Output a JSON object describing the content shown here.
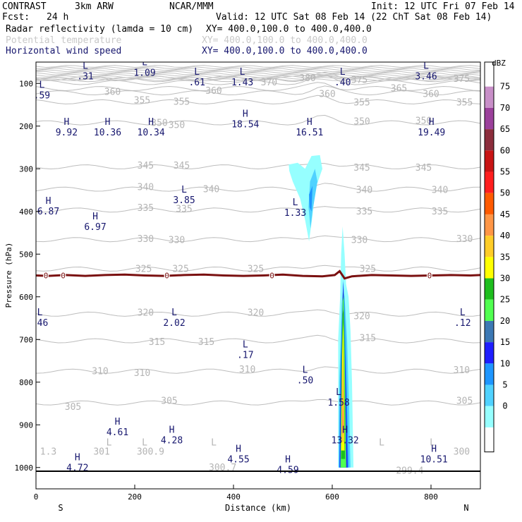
{
  "header": {
    "program": "CONTRAST",
    "model": "3km ARW",
    "org": "NCAR/MMM",
    "init": "Init: 12 UTC Fri 07 Feb 14",
    "fcst_label": "Fcst:",
    "fcst_value": "24 h",
    "valid": "Valid: 12 UTC Sat 08 Feb 14 (22 ChT Sat 08 Feb 14)",
    "fields": [
      {
        "name": "Radar reflectivity (lamda = 10 cm)",
        "xy": "XY= 400.0,100.0 to 400.0,400.0",
        "color": "#000000"
      },
      {
        "name": "Potential temperature",
        "xy": "XY= 400.0,100.0 to 400.0,400.0",
        "color": "#c8c8c8"
      },
      {
        "name": "Horizontal wind speed",
        "xy": "XY= 400.0,100.0 to 400.0,400.0",
        "color": "#16166e"
      }
    ]
  },
  "chart_data": {
    "type": "contour cross-section",
    "xlabel": "Distance (km)",
    "ylabel": "Pressure (hPa)",
    "xlim": [
      0,
      900
    ],
    "ylim": [
      1050,
      50
    ],
    "x_ticks": [
      "0",
      "200",
      "400",
      "600",
      "800"
    ],
    "x_tick_values": [
      0,
      200,
      400,
      600,
      800
    ],
    "y_ticks": [
      "100",
      "200",
      "300",
      "400",
      "500",
      "600",
      "700",
      "800",
      "900",
      "1000"
    ],
    "y_tick_values": [
      100,
      200,
      300,
      400,
      500,
      600,
      700,
      800,
      900,
      1000
    ],
    "endpoint_left": "S",
    "endpoint_right": "N",
    "colorbar": {
      "unit": "dBZ",
      "labels": [
        "75",
        "70",
        "65",
        "60",
        "55",
        "50",
        "45",
        "40",
        "35",
        "30",
        "25",
        "20",
        "15",
        "10",
        "5",
        "0"
      ],
      "colors": [
        "#ffffff",
        "#c88fc8",
        "#9b409b",
        "#8c2d3c",
        "#c81414",
        "#ff1e1e",
        "#ff5a00",
        "#ff9646",
        "#ffcd28",
        "#ffff00",
        "#1ebe1e",
        "#50ff50",
        "#3c78b4",
        "#1e1eff",
        "#1e96ff",
        "#50d2ff",
        "#96ffff",
        "#ffffff"
      ]
    },
    "theta_labels": [
      {
        "text": "380",
        "x": 550,
        "p": 88
      },
      {
        "text": "375",
        "x": 655,
        "p": 92
      },
      {
        "text": "375",
        "x": 862,
        "p": 90
      },
      {
        "text": "370",
        "x": 472,
        "p": 98
      },
      {
        "text": "365",
        "x": 735,
        "p": 112
      },
      {
        "text": "360",
        "x": 155,
        "p": 120
      },
      {
        "text": "360",
        "x": 360,
        "p": 118
      },
      {
        "text": "360",
        "x": 590,
        "p": 125
      },
      {
        "text": "360",
        "x": 800,
        "p": 125
      },
      {
        "text": "355",
        "x": 215,
        "p": 140
      },
      {
        "text": "355",
        "x": 295,
        "p": 143
      },
      {
        "text": "355",
        "x": 660,
        "p": 145
      },
      {
        "text": "355",
        "x": 868,
        "p": 145
      },
      {
        "text": "350",
        "x": 250,
        "p": 193
      },
      {
        "text": "350",
        "x": 285,
        "p": 198
      },
      {
        "text": "350",
        "x": 660,
        "p": 190
      },
      {
        "text": "350",
        "x": 785,
        "p": 188
      },
      {
        "text": "345",
        "x": 222,
        "p": 293
      },
      {
        "text": "345",
        "x": 295,
        "p": 293
      },
      {
        "text": "345",
        "x": 660,
        "p": 298
      },
      {
        "text": "345",
        "x": 785,
        "p": 298
      },
      {
        "text": "340",
        "x": 222,
        "p": 343
      },
      {
        "text": "340",
        "x": 355,
        "p": 348
      },
      {
        "text": "340",
        "x": 665,
        "p": 350
      },
      {
        "text": "340",
        "x": 818,
        "p": 350
      },
      {
        "text": "335",
        "x": 222,
        "p": 392
      },
      {
        "text": "335",
        "x": 300,
        "p": 395
      },
      {
        "text": "335",
        "x": 665,
        "p": 400
      },
      {
        "text": "335",
        "x": 818,
        "p": 400
      },
      {
        "text": "330",
        "x": 222,
        "p": 465
      },
      {
        "text": "330",
        "x": 285,
        "p": 467
      },
      {
        "text": "330",
        "x": 655,
        "p": 467
      },
      {
        "text": "330",
        "x": 868,
        "p": 465
      },
      {
        "text": "325",
        "x": 218,
        "p": 535
      },
      {
        "text": "325",
        "x": 293,
        "p": 535
      },
      {
        "text": "325",
        "x": 445,
        "p": 535
      },
      {
        "text": "325",
        "x": 672,
        "p": 535
      },
      {
        "text": "320",
        "x": 222,
        "p": 638
      },
      {
        "text": "320",
        "x": 445,
        "p": 638
      },
      {
        "text": "320",
        "x": 660,
        "p": 646
      },
      {
        "text": "315",
        "x": 245,
        "p": 706
      },
      {
        "text": "315",
        "x": 345,
        "p": 706
      },
      {
        "text": "315",
        "x": 672,
        "p": 697
      },
      {
        "text": "310",
        "x": 130,
        "p": 775
      },
      {
        "text": "310",
        "x": 215,
        "p": 779
      },
      {
        "text": "310",
        "x": 428,
        "p": 771
      },
      {
        "text": "310",
        "x": 862,
        "p": 772
      },
      {
        "text": "305",
        "x": 75,
        "p": 858
      },
      {
        "text": "305",
        "x": 270,
        "p": 844
      },
      {
        "text": "305",
        "x": 868,
        "p": 844
      },
      {
        "text": "1.3",
        "x": 25,
        "p": 963
      },
      {
        "text": "301",
        "x": 133,
        "p": 963
      },
      {
        "text": "300.9",
        "x": 232,
        "p": 963
      },
      {
        "text": "300.7",
        "x": 378,
        "p": 1000
      },
      {
        "text": "299.4",
        "x": 757,
        "p": 1008
      },
      {
        "text": "300",
        "x": 862,
        "p": 963
      }
    ],
    "theta_markers": [
      {
        "text": "L",
        "x": 148,
        "p": 942
      },
      {
        "text": "L",
        "x": 220,
        "p": 942
      },
      {
        "text": "L",
        "x": 360,
        "p": 942
      },
      {
        "text": "L",
        "x": 700,
        "p": 942
      },
      {
        "text": "L",
        "x": 803,
        "p": 942
      }
    ],
    "wind_extrema": [
      {
        "type": "L",
        "value": ".31",
        "x": 100,
        "p": 72
      },
      {
        "type": "L",
        "value": "1.09",
        "x": 220,
        "p": 64
      },
      {
        "type": "L",
        "value": ".61",
        "x": 326,
        "p": 86
      },
      {
        "type": "L",
        "value": "1.43",
        "x": 418,
        "p": 86
      },
      {
        "type": "L",
        "value": ".40",
        "x": 621,
        "p": 86
      },
      {
        "type": "L",
        "value": "3.46",
        "x": 790,
        "p": 72
      },
      {
        "type": "L",
        "value": ".59",
        "x": 12,
        "p": 117
      },
      {
        "type": "H",
        "value": "9.92",
        "x": 62,
        "p": 204
      },
      {
        "type": "H",
        "value": "10.36",
        "x": 145,
        "p": 204
      },
      {
        "type": "H",
        "value": "10.34",
        "x": 233,
        "p": 204
      },
      {
        "type": "H",
        "value": "18.54",
        "x": 424,
        "p": 185
      },
      {
        "type": "H",
        "value": "16.51",
        "x": 554,
        "p": 204
      },
      {
        "type": "H",
        "value": "19.49",
        "x": 801,
        "p": 204
      },
      {
        "type": "L",
        "value": "3.85",
        "x": 300,
        "p": 362
      },
      {
        "type": "L",
        "value": "1.33",
        "x": 525,
        "p": 392
      },
      {
        "type": "H",
        "value": "6.87",
        "x": 25,
        "p": 389
      },
      {
        "type": "H",
        "value": "6.97",
        "x": 120,
        "p": 425
      },
      {
        "type": "L",
        "value": ".46",
        "x": 8,
        "p": 650
      },
      {
        "type": "L",
        "value": "2.02",
        "x": 280,
        "p": 650
      },
      {
        "type": "L",
        "value": ".12",
        "x": 864,
        "p": 650
      },
      {
        "type": "L",
        "value": ".17",
        "x": 424,
        "p": 725
      },
      {
        "type": "L",
        "value": ".50",
        "x": 545,
        "p": 785
      },
      {
        "type": "L",
        "value": "1.58",
        "x": 613,
        "p": 837
      },
      {
        "type": "H",
        "value": "4.61",
        "x": 165,
        "p": 906
      },
      {
        "type": "H",
        "value": "4.28",
        "x": 275,
        "p": 925
      },
      {
        "type": "H",
        "value": "13.32",
        "x": 626,
        "p": 925
      },
      {
        "type": "H",
        "value": "10.51",
        "x": 806,
        "p": 970
      },
      {
        "type": "H",
        "value": "4.55",
        "x": 410,
        "p": 970
      },
      {
        "type": "H",
        "value": "4.72",
        "x": 84,
        "p": 990
      },
      {
        "type": "H",
        "value": "4.59",
        "x": 510,
        "p": 995
      }
    ],
    "freezing_level": {
      "value": "0",
      "color": "#7a1010",
      "points": [
        [
          0,
          550
        ],
        [
          25,
          551
        ],
        [
          60,
          549
        ],
        [
          100,
          551
        ],
        [
          140,
          549
        ],
        [
          180,
          548
        ],
        [
          220,
          550
        ],
        [
          260,
          551
        ],
        [
          300,
          549
        ],
        [
          340,
          548
        ],
        [
          380,
          550
        ],
        [
          420,
          551
        ],
        [
          460,
          550
        ],
        [
          500,
          548
        ],
        [
          540,
          551
        ],
        [
          580,
          552
        ],
        [
          605,
          549
        ],
        [
          615,
          540
        ],
        [
          625,
          557
        ],
        [
          640,
          552
        ],
        [
          680,
          549
        ],
        [
          720,
          550
        ],
        [
          760,
          551
        ],
        [
          800,
          550
        ],
        [
          840,
          549
        ],
        [
          880,
          550
        ],
        [
          900,
          549
        ]
      ],
      "label_x": [
        20,
        55,
        265,
        478,
        797
      ]
    },
    "reflectivity": [
      {
        "dbz": 5,
        "points": [
          [
            512,
            290
          ],
          [
            530,
            286
          ],
          [
            545,
            300
          ],
          [
            558,
            270
          ],
          [
            575,
            268
          ],
          [
            580,
            300
          ],
          [
            565,
            350
          ],
          [
            560,
            410
          ],
          [
            553,
            470
          ],
          [
            545,
            420
          ],
          [
            535,
            370
          ],
          [
            520,
            330
          ],
          [
            513,
            305
          ]
        ]
      },
      {
        "dbz": 10,
        "points": [
          [
            555,
            330
          ],
          [
            565,
            300
          ],
          [
            570,
            330
          ],
          [
            560,
            400
          ],
          [
            556,
            440
          ],
          [
            552,
            390
          ]
        ]
      },
      {
        "dbz": 15,
        "points": [
          [
            553,
            360
          ],
          [
            560,
            340
          ],
          [
            558,
            400
          ],
          [
            554,
            390
          ]
        ]
      },
      {
        "dbz": 5,
        "points": [
          [
            612,
            1000
          ],
          [
            612,
            700
          ],
          [
            616,
            600
          ],
          [
            618,
            500
          ],
          [
            621,
            435
          ],
          [
            625,
            500
          ],
          [
            628,
            570
          ],
          [
            633,
            600
          ],
          [
            637,
            680
          ],
          [
            640,
            800
          ],
          [
            643,
            1000
          ]
        ]
      },
      {
        "dbz": 10,
        "points": [
          [
            613,
            1000
          ],
          [
            614,
            800
          ],
          [
            617,
            700
          ],
          [
            619,
            620
          ],
          [
            622,
            580
          ],
          [
            625,
            600
          ],
          [
            630,
            700
          ],
          [
            634,
            850
          ],
          [
            637,
            1000
          ]
        ]
      },
      {
        "dbz": 15,
        "points": [
          [
            614,
            1000
          ],
          [
            616,
            800
          ],
          [
            619,
            680
          ],
          [
            622,
            560
          ],
          [
            625,
            620
          ],
          [
            628,
            750
          ],
          [
            633,
            1000
          ]
        ]
      },
      {
        "dbz": 20,
        "points": [
          [
            615,
            1000
          ],
          [
            617,
            820
          ],
          [
            620,
            650
          ],
          [
            622,
            565
          ],
          [
            624,
            640
          ],
          [
            627,
            780
          ],
          [
            631,
            1000
          ]
        ]
      },
      {
        "dbz": 25,
        "points": [
          [
            616,
            1000
          ],
          [
            618,
            800
          ],
          [
            620,
            650
          ],
          [
            623,
            580
          ],
          [
            625,
            680
          ],
          [
            629,
            1000
          ]
        ]
      },
      {
        "dbz": 30,
        "points": [
          [
            617,
            1000
          ],
          [
            619,
            760
          ],
          [
            621,
            610
          ],
          [
            623,
            600
          ],
          [
            625,
            720
          ],
          [
            628,
            1000
          ]
        ]
      },
      {
        "dbz": 35,
        "points": [
          [
            618,
            980
          ],
          [
            619,
            760
          ],
          [
            621,
            640
          ],
          [
            623,
            630
          ],
          [
            624,
            760
          ],
          [
            626,
            980
          ]
        ]
      },
      {
        "dbz": 40,
        "points": [
          [
            618,
            960
          ],
          [
            620,
            740
          ],
          [
            622,
            660
          ],
          [
            623,
            700
          ],
          [
            625,
            960
          ]
        ]
      },
      {
        "dbz": 45,
        "points": [
          [
            619,
            940
          ],
          [
            620,
            800
          ],
          [
            622,
            720
          ],
          [
            623,
            800
          ],
          [
            624,
            940
          ]
        ]
      },
      {
        "dbz": 50,
        "points": [
          [
            619,
            920
          ],
          [
            621,
            860
          ],
          [
            622,
            800
          ],
          [
            623,
            860
          ],
          [
            624,
            920
          ]
        ]
      }
    ],
    "grid": false,
    "legend": "right-colorbar"
  }
}
